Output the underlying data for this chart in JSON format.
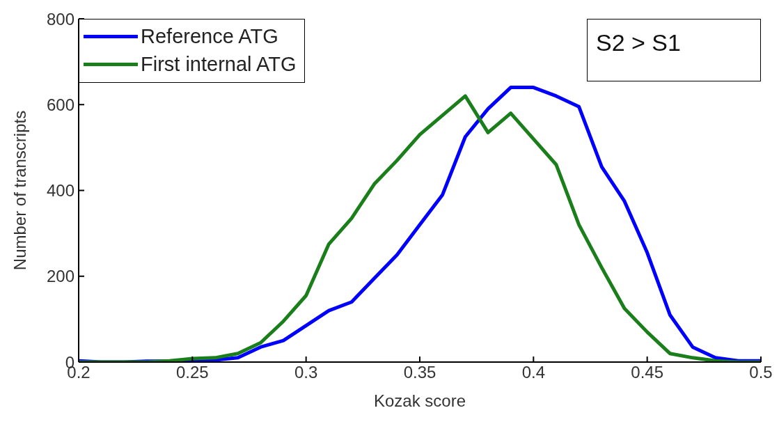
{
  "chart_data": {
    "type": "line",
    "xlabel": "Kozak score",
    "ylabel": "Number of transcripts",
    "x": [
      0.2,
      0.21,
      0.22,
      0.23,
      0.24,
      0.25,
      0.26,
      0.27,
      0.28,
      0.29,
      0.3,
      0.31,
      0.32,
      0.33,
      0.34,
      0.35,
      0.36,
      0.37,
      0.38,
      0.39,
      0.4,
      0.41,
      0.42,
      0.43,
      0.44,
      0.45,
      0.46,
      0.47,
      0.48,
      0.49,
      0.5
    ],
    "series": [
      {
        "name": "Reference ATG",
        "color": "#0000ff",
        "values": [
          3,
          0,
          0,
          2,
          2,
          2,
          5,
          10,
          35,
          50,
          85,
          120,
          140,
          195,
          250,
          320,
          390,
          525,
          590,
          640,
          640,
          620,
          595,
          455,
          375,
          255,
          110,
          35,
          10,
          3,
          3
        ]
      },
      {
        "name": "First internal ATG",
        "color": "#1a7f1a",
        "values": [
          0,
          0,
          0,
          0,
          3,
          8,
          10,
          20,
          45,
          95,
          155,
          275,
          335,
          415,
          470,
          530,
          575,
          620,
          535,
          580,
          520,
          460,
          320,
          220,
          125,
          70,
          20,
          10,
          3,
          0,
          0
        ]
      }
    ],
    "xlim": [
      0.2,
      0.5
    ],
    "xticks": [
      0.2,
      0.25,
      0.3,
      0.35,
      0.4,
      0.45,
      0.5
    ],
    "ylim": [
      0,
      800
    ],
    "yticks": [
      0,
      200,
      400,
      600,
      800
    ],
    "annotations": [
      "S2 > S1"
    ],
    "legend": "top left",
    "marker": "none",
    "line_style": "solid"
  }
}
